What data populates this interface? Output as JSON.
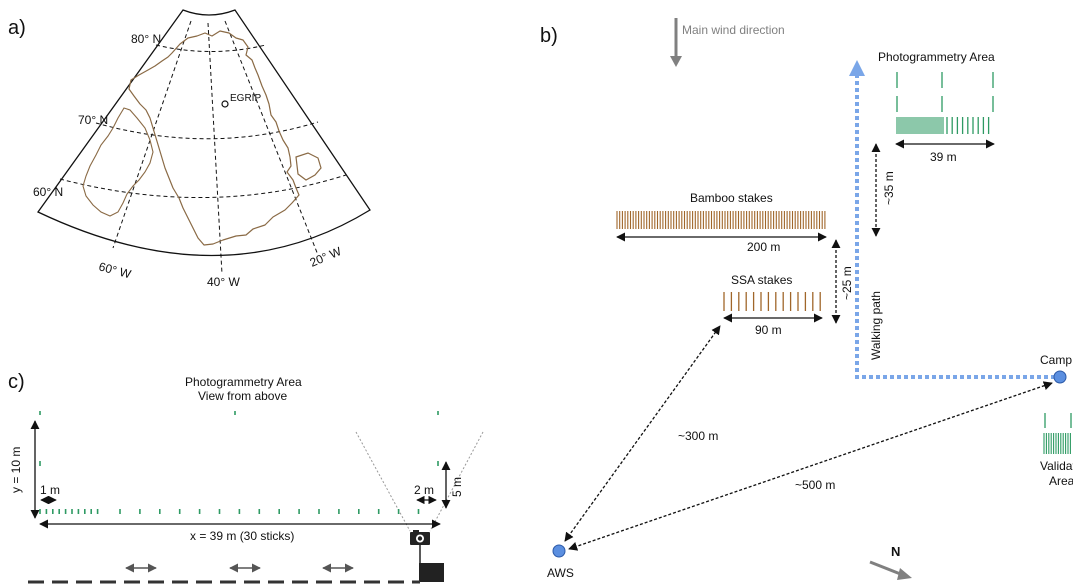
{
  "panels": {
    "a": "a)",
    "b": "b)",
    "c": "c)"
  },
  "map": {
    "lat_labels": [
      "80° N",
      "70° N",
      "60° N"
    ],
    "lon_labels": [
      "60° W",
      "40° W",
      "20° W"
    ],
    "site": "EGRIP"
  },
  "layout_b": {
    "wind": "Main wind direction",
    "photogrammetry_area": "Photogrammetry Area",
    "photogrammetry_width": "39 m",
    "gap_35": "~35 m",
    "bamboo": "Bamboo stakes",
    "bamboo_len": "200 m",
    "ssa": "SSA stakes",
    "ssa_len": "90 m",
    "gap_25": "~25 m",
    "walking_path": "Walking path",
    "camp": "Camp",
    "validation_line1": "Validation",
    "validation_line2": "Area",
    "dist_300": "~300 m",
    "dist_500": "~500 m",
    "aws": "AWS",
    "north": "N"
  },
  "panel_c": {
    "title_line1": "Photogrammetry Area",
    "title_line2": "View from above",
    "y_label": "y = 10 m",
    "one_m": "1 m",
    "two_m": "2 m",
    "five_m": "5 m",
    "x_label": "x = 39 m (30 sticks)"
  },
  "colors": {
    "bamboo": "#a0662a",
    "green": "#2e9a63",
    "path_blue": "#7aa6e8",
    "node_blue": "#5b8fe0",
    "coast": "#8a6a45",
    "grey": "#8a8a8a"
  }
}
